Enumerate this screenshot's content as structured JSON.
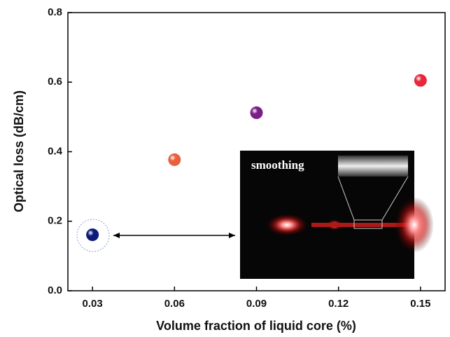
{
  "chart_data": {
    "type": "scatter",
    "xlabel": "Volume fraction of liquid core (%)",
    "ylabel": "Optical loss (dB/cm)",
    "annotation": "smoothing",
    "x": [
      0.03,
      0.06,
      0.09,
      0.15
    ],
    "y": [
      0.161,
      0.377,
      0.512,
      0.605
    ],
    "colors": [
      "#0d1a7a",
      "#e8603c",
      "#7a1f86",
      "#e8283a"
    ],
    "xlim": [
      0.021,
      0.159
    ],
    "ylim": [
      0,
      0.8
    ],
    "xticks": [
      0.03,
      0.06,
      0.09,
      0.12,
      0.15
    ],
    "yticks": [
      {
        "value": 0,
        "label": "0.0"
      },
      0.2,
      0.4,
      0.6,
      0.8
    ]
  }
}
